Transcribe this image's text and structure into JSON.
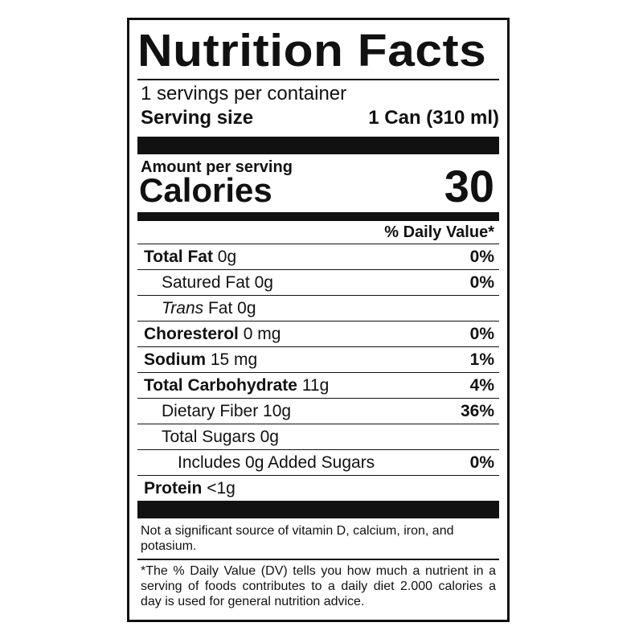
{
  "title": "Nutrition Facts",
  "servings_per_container": "1 servings per container",
  "serving_size": {
    "label": "Serving size",
    "value": "1 Can (310 ml)"
  },
  "amount_per_serving": "Amount per serving",
  "calories": {
    "label": "Calories",
    "value": "30"
  },
  "daily_value_header": "% Daily Value*",
  "nutrients": [
    {
      "name": "Total Fat",
      "amount": "0g",
      "dv": "0%",
      "bold": true,
      "indent": 0
    },
    {
      "name": "Satured Fat",
      "amount": "0g",
      "dv": "0%",
      "bold": false,
      "indent": 1
    },
    {
      "name": "Trans",
      "name_suffix": "Fat",
      "amount": "0g",
      "dv": "",
      "bold": false,
      "indent": 1,
      "italic": true
    },
    {
      "name": "Choresterol",
      "amount": "0 mg",
      "dv": "0%",
      "bold": true,
      "indent": 0
    },
    {
      "name": "Sodium",
      "amount": "15 mg",
      "dv": "1%",
      "bold": true,
      "indent": 0
    },
    {
      "name": "Total Carbohydrate",
      "amount": "11g",
      "dv": "4%",
      "bold": true,
      "indent": 0
    },
    {
      "name": "Dietary Fiber",
      "amount": "10g",
      "dv": "36%",
      "bold": false,
      "indent": 1
    },
    {
      "name": "Total Sugars",
      "amount": "0g",
      "dv": "",
      "bold": false,
      "indent": 1
    },
    {
      "name": "Includes 0g Added Sugars",
      "amount": "",
      "dv": "0%",
      "bold": false,
      "indent": 2
    },
    {
      "name": "Protein",
      "amount": "<1g",
      "dv": "",
      "bold": true,
      "indent": 0
    }
  ],
  "note": "Not a significant source of vitamin D, calcium, iron, and potasium.",
  "footnote": "*The % Daily Value (DV) tells you how much a nutrient in a serving of foods contributes to a daily diet 2.000 calories a day is used for general nutrition advice."
}
